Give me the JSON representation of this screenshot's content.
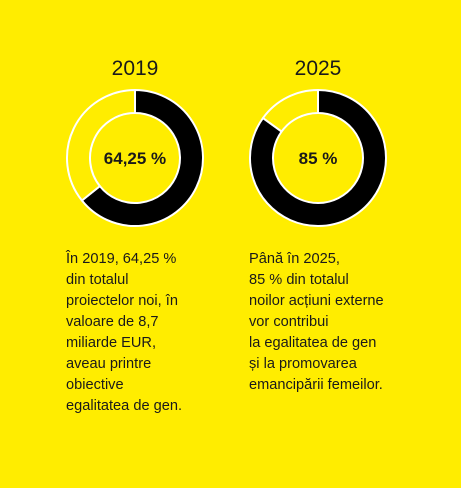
{
  "theme": {
    "background": "#FFED00",
    "filled_color": "#000000",
    "remaining_color": "#FFED00",
    "ring_border": "#FFFFFF"
  },
  "chart_data": [
    {
      "type": "pie",
      "variant": "donut",
      "title": "2019",
      "center_label": "64,25 %",
      "values": [
        64.25,
        35.75
      ],
      "description": "În 2019, 64,25 %\ndin totalul\nproiectelor noi, în\nvaloare de 8,7\nmiliarde EUR,\naveau printre\nobiective\negalitatea de gen."
    },
    {
      "type": "pie",
      "variant": "donut",
      "title": "2025",
      "center_label": "85 %",
      "values": [
        85,
        15
      ],
      "description": "Până în 2025,\n85 % din totalul\nnoilor acțiuni externe\nvor contribui\nla egalitatea de gen\nși la promovarea\nemancipării femeilor."
    }
  ]
}
